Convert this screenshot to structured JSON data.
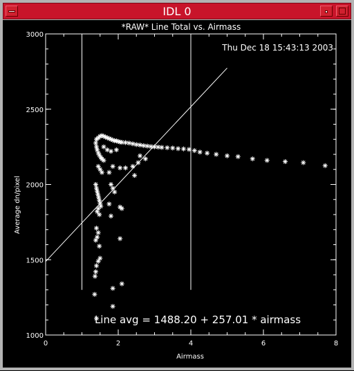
{
  "window": {
    "title": "IDL 0"
  },
  "chart_data": {
    "type": "scatter",
    "title": "*RAW* Line Total vs. Airmass",
    "timestamp": "Thu Dec 18 15:43:13 2003",
    "xlabel": "Airmass",
    "ylabel": "Average dn/pixel",
    "xlim": [
      0,
      8
    ],
    "ylim": [
      1000,
      3000
    ],
    "x_ticks": [
      0,
      2,
      4,
      6,
      8
    ],
    "y_ticks": [
      1000,
      1500,
      2000,
      2500,
      3000
    ],
    "fit_label": "Line avg = 1488.20 + 257.01 * airmass",
    "fit": {
      "intercept": 1488.2,
      "slope": 257.01,
      "x_range": [
        0,
        5
      ]
    },
    "vertical_lines": [
      1.0,
      4.0
    ],
    "vertical_line_range": [
      1300,
      2990
    ],
    "marker": "*",
    "points": [
      [
        1.4,
        2300
      ],
      [
        1.45,
        2310
      ],
      [
        1.5,
        2320
      ],
      [
        1.55,
        2325
      ],
      [
        1.6,
        2320
      ],
      [
        1.65,
        2315
      ],
      [
        1.7,
        2310
      ],
      [
        1.75,
        2305
      ],
      [
        1.8,
        2300
      ],
      [
        1.85,
        2295
      ],
      [
        1.9,
        2290
      ],
      [
        1.95,
        2290
      ],
      [
        2.0,
        2285
      ],
      [
        2.05,
        2282
      ],
      [
        2.1,
        2280
      ],
      [
        2.2,
        2278
      ],
      [
        2.3,
        2275
      ],
      [
        2.4,
        2270
      ],
      [
        2.5,
        2265
      ],
      [
        2.6,
        2262
      ],
      [
        2.7,
        2258
      ],
      [
        2.8,
        2255
      ],
      [
        2.9,
        2252
      ],
      [
        3.0,
        2250
      ],
      [
        3.1,
        2248
      ],
      [
        3.2,
        2246
      ],
      [
        3.35,
        2244
      ],
      [
        3.5,
        2242
      ],
      [
        3.65,
        2238
      ],
      [
        3.8,
        2236
      ],
      [
        3.95,
        2233
      ],
      [
        4.1,
        2225
      ],
      [
        4.25,
        2215
      ],
      [
        4.45,
        2208
      ],
      [
        4.7,
        2200
      ],
      [
        5.0,
        2190
      ],
      [
        5.3,
        2185
      ],
      [
        5.7,
        2170
      ],
      [
        6.1,
        2160
      ],
      [
        6.6,
        2152
      ],
      [
        7.1,
        2145
      ],
      [
        7.7,
        2125
      ],
      [
        1.38,
        2275
      ],
      [
        1.4,
        2250
      ],
      [
        1.42,
        2230
      ],
      [
        1.45,
        2210
      ],
      [
        1.48,
        2195
      ],
      [
        1.52,
        2180
      ],
      [
        1.55,
        2170
      ],
      [
        1.6,
        2160
      ],
      [
        1.45,
        2120
      ],
      [
        1.5,
        2100
      ],
      [
        1.55,
        2080
      ],
      [
        1.6,
        2250
      ],
      [
        1.7,
        2230
      ],
      [
        1.8,
        2220
      ],
      [
        1.95,
        2230
      ],
      [
        2.6,
        2190
      ],
      [
        2.75,
        2170
      ],
      [
        2.55,
        2145
      ],
      [
        2.4,
        2120
      ],
      [
        2.2,
        2110
      ],
      [
        2.05,
        2110
      ],
      [
        1.85,
        2120
      ],
      [
        1.75,
        2080
      ],
      [
        2.45,
        2060
      ],
      [
        1.38,
        2000
      ],
      [
        1.4,
        1975
      ],
      [
        1.42,
        1955
      ],
      [
        1.44,
        1935
      ],
      [
        1.46,
        1915
      ],
      [
        1.48,
        1895
      ],
      [
        1.5,
        1875
      ],
      [
        1.52,
        1855
      ],
      [
        1.42,
        1820
      ],
      [
        1.45,
        1840
      ],
      [
        1.48,
        1800
      ],
      [
        1.8,
        2000
      ],
      [
        1.85,
        1975
      ],
      [
        1.9,
        1950
      ],
      [
        1.75,
        1870
      ],
      [
        2.05,
        1850
      ],
      [
        2.1,
        1840
      ],
      [
        1.8,
        1790
      ],
      [
        1.4,
        1710
      ],
      [
        1.45,
        1680
      ],
      [
        1.42,
        1650
      ],
      [
        1.38,
        1630
      ],
      [
        1.48,
        1590
      ],
      [
        2.05,
        1640
      ],
      [
        1.5,
        1510
      ],
      [
        1.45,
        1490
      ],
      [
        1.4,
        1460
      ],
      [
        1.38,
        1420
      ],
      [
        1.36,
        1390
      ],
      [
        2.1,
        1340
      ],
      [
        1.85,
        1310
      ],
      [
        1.35,
        1270
      ],
      [
        1.85,
        1190
      ],
      [
        1.4,
        1110
      ]
    ]
  }
}
